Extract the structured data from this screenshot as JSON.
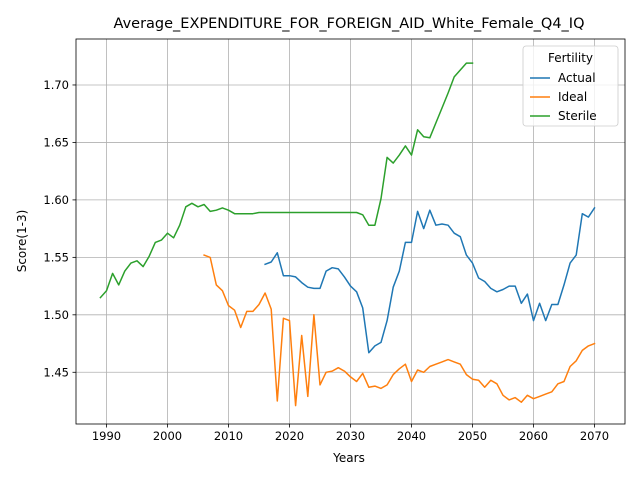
{
  "chart_data": {
    "type": "line",
    "title": "Average_EXPENDITURE_FOR_FOREIGN_AID_White_Female_Q4_IQ",
    "xlabel": "Years",
    "ylabel": "Score(1-3)",
    "xlim": [
      1985,
      2075
    ],
    "ylim": [
      1.405,
      1.74
    ],
    "xticks": [
      1990,
      2000,
      2010,
      2020,
      2030,
      2040,
      2050,
      2060,
      2070
    ],
    "yticks": [
      1.45,
      1.5,
      1.55,
      1.6,
      1.65,
      1.7
    ],
    "ytick_labels": [
      "1.45",
      "1.50",
      "1.55",
      "1.60",
      "1.65",
      "1.70"
    ],
    "grid": true,
    "legend": {
      "title": "Fertility",
      "position": "top-right"
    },
    "series": [
      {
        "name": "Actual",
        "color": "#1f77b4",
        "points": [
          [
            2016,
            1.544
          ],
          [
            2017,
            1.546
          ],
          [
            2018,
            1.554
          ],
          [
            2019,
            1.534
          ],
          [
            2020,
            1.534
          ],
          [
            2021,
            1.533
          ],
          [
            2022,
            1.528
          ],
          [
            2023,
            1.524
          ],
          [
            2024,
            1.523
          ],
          [
            2025,
            1.523
          ],
          [
            2026,
            1.538
          ],
          [
            2027,
            1.541
          ],
          [
            2028,
            1.54
          ],
          [
            2029,
            1.533
          ],
          [
            2030,
            1.525
          ],
          [
            2031,
            1.52
          ],
          [
            2032,
            1.506
          ],
          [
            2033,
            1.467
          ],
          [
            2034,
            1.473
          ],
          [
            2035,
            1.476
          ],
          [
            2036,
            1.495
          ],
          [
            2037,
            1.524
          ],
          [
            2038,
            1.538
          ],
          [
            2039,
            1.563
          ],
          [
            2040,
            1.563
          ],
          [
            2041,
            1.59
          ],
          [
            2042,
            1.575
          ],
          [
            2043,
            1.591
          ],
          [
            2044,
            1.578
          ],
          [
            2045,
            1.579
          ],
          [
            2046,
            1.578
          ],
          [
            2047,
            1.571
          ],
          [
            2048,
            1.568
          ],
          [
            2049,
            1.552
          ],
          [
            2050,
            1.545
          ],
          [
            2051,
            1.532
          ],
          [
            2052,
            1.529
          ],
          [
            2053,
            1.523
          ],
          [
            2054,
            1.52
          ],
          [
            2055,
            1.522
          ],
          [
            2056,
            1.525
          ],
          [
            2057,
            1.525
          ],
          [
            2058,
            1.51
          ],
          [
            2059,
            1.518
          ],
          [
            2060,
            1.495
          ],
          [
            2061,
            1.51
          ],
          [
            2062,
            1.495
          ],
          [
            2063,
            1.509
          ],
          [
            2064,
            1.509
          ],
          [
            2065,
            1.526
          ],
          [
            2066,
            1.545
          ],
          [
            2067,
            1.552
          ],
          [
            2068,
            1.588
          ],
          [
            2069,
            1.585
          ],
          [
            2070,
            1.593
          ]
        ]
      },
      {
        "name": "Ideal",
        "color": "#ff7f0e",
        "points": [
          [
            2006,
            1.552
          ],
          [
            2007,
            1.55
          ],
          [
            2008,
            1.526
          ],
          [
            2009,
            1.521
          ],
          [
            2010,
            1.508
          ],
          [
            2011,
            1.504
          ],
          [
            2012,
            1.489
          ],
          [
            2013,
            1.503
          ],
          [
            2014,
            1.503
          ],
          [
            2015,
            1.509
          ],
          [
            2016,
            1.519
          ],
          [
            2017,
            1.505
          ],
          [
            2018,
            1.425
          ],
          [
            2019,
            1.497
          ],
          [
            2020,
            1.495
          ],
          [
            2021,
            1.421
          ],
          [
            2022,
            1.482
          ],
          [
            2023,
            1.429
          ],
          [
            2024,
            1.5
          ],
          [
            2025,
            1.439
          ],
          [
            2026,
            1.45
          ],
          [
            2027,
            1.451
          ],
          [
            2028,
            1.454
          ],
          [
            2029,
            1.451
          ],
          [
            2030,
            1.446
          ],
          [
            2031,
            1.442
          ],
          [
            2032,
            1.449
          ],
          [
            2033,
            1.437
          ],
          [
            2034,
            1.438
          ],
          [
            2035,
            1.436
          ],
          [
            2036,
            1.439
          ],
          [
            2037,
            1.448
          ],
          [
            2038,
            1.453
          ],
          [
            2039,
            1.457
          ],
          [
            2040,
            1.442
          ],
          [
            2041,
            1.452
          ],
          [
            2042,
            1.45
          ],
          [
            2043,
            1.455
          ],
          [
            2044,
            1.457
          ],
          [
            2045,
            1.459
          ],
          [
            2046,
            1.461
          ],
          [
            2047,
            1.459
          ],
          [
            2048,
            1.457
          ],
          [
            2049,
            1.448
          ],
          [
            2050,
            1.444
          ],
          [
            2051,
            1.443
          ],
          [
            2052,
            1.437
          ],
          [
            2053,
            1.443
          ],
          [
            2054,
            1.44
          ],
          [
            2055,
            1.43
          ],
          [
            2056,
            1.426
          ],
          [
            2057,
            1.428
          ],
          [
            2058,
            1.424
          ],
          [
            2059,
            1.43
          ],
          [
            2060,
            1.427
          ],
          [
            2061,
            1.429
          ],
          [
            2062,
            1.431
          ],
          [
            2063,
            1.433
          ],
          [
            2064,
            1.44
          ],
          [
            2065,
            1.442
          ],
          [
            2066,
            1.455
          ],
          [
            2067,
            1.46
          ],
          [
            2068,
            1.469
          ],
          [
            2069,
            1.473
          ],
          [
            2070,
            1.475
          ]
        ]
      },
      {
        "name": "Sterile",
        "color": "#2ca02c",
        "points": [
          [
            1989,
            1.515
          ],
          [
            1990,
            1.521
          ],
          [
            1991,
            1.536
          ],
          [
            1992,
            1.526
          ],
          [
            1993,
            1.538
          ],
          [
            1994,
            1.545
          ],
          [
            1995,
            1.547
          ],
          [
            1996,
            1.542
          ],
          [
            1997,
            1.551
          ],
          [
            1998,
            1.563
          ],
          [
            1999,
            1.565
          ],
          [
            2000,
            1.571
          ],
          [
            2001,
            1.567
          ],
          [
            2002,
            1.578
          ],
          [
            2003,
            1.594
          ],
          [
            2004,
            1.597
          ],
          [
            2005,
            1.594
          ],
          [
            2006,
            1.596
          ],
          [
            2007,
            1.59
          ],
          [
            2008,
            1.591
          ],
          [
            2009,
            1.593
          ],
          [
            2010,
            1.591
          ],
          [
            2011,
            1.588
          ],
          [
            2012,
            1.588
          ],
          [
            2013,
            1.588
          ],
          [
            2014,
            1.588
          ],
          [
            2015,
            1.589
          ],
          [
            2016,
            1.589
          ],
          [
            2017,
            1.589
          ],
          [
            2018,
            1.589
          ],
          [
            2019,
            1.589
          ],
          [
            2020,
            1.589
          ],
          [
            2021,
            1.589
          ],
          [
            2022,
            1.589
          ],
          [
            2023,
            1.589
          ],
          [
            2024,
            1.589
          ],
          [
            2025,
            1.589
          ],
          [
            2026,
            1.589
          ],
          [
            2027,
            1.589
          ],
          [
            2028,
            1.589
          ],
          [
            2029,
            1.589
          ],
          [
            2030,
            1.589
          ],
          [
            2031,
            1.589
          ],
          [
            2032,
            1.587
          ],
          [
            2033,
            1.578
          ],
          [
            2034,
            1.578
          ],
          [
            2035,
            1.601
          ],
          [
            2036,
            1.637
          ],
          [
            2037,
            1.632
          ],
          [
            2038,
            1.639
          ],
          [
            2039,
            1.647
          ],
          [
            2040,
            1.639
          ],
          [
            2041,
            1.661
          ],
          [
            2042,
            1.655
          ],
          [
            2043,
            1.654
          ],
          [
            2044,
            1.667
          ],
          [
            2045,
            1.68
          ],
          [
            2046,
            1.693
          ],
          [
            2047,
            1.707
          ],
          [
            2048,
            1.713
          ],
          [
            2049,
            1.719
          ],
          [
            2050,
            1.719
          ]
        ]
      }
    ]
  }
}
